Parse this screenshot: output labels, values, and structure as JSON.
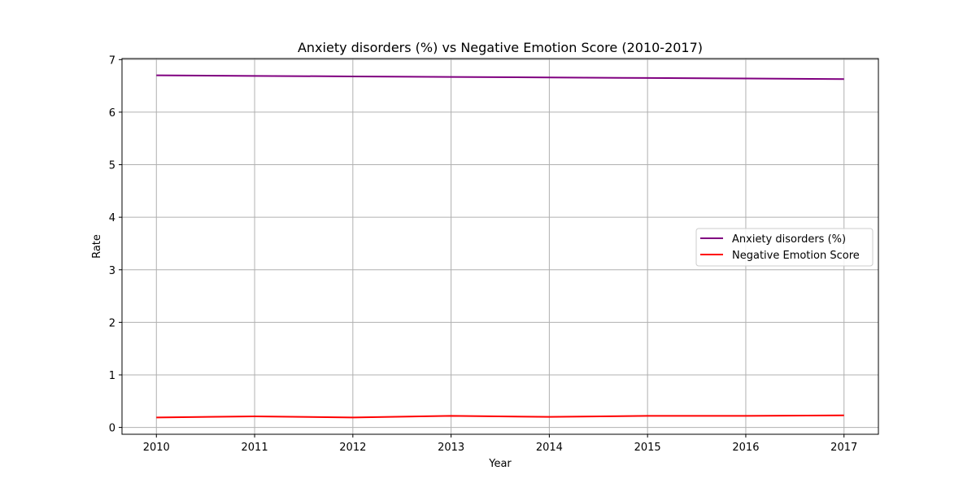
{
  "chart_data": {
    "type": "line",
    "title": "Anxiety disorders (%) vs Negative Emotion Score (2010-2017)",
    "xlabel": "Year",
    "ylabel": "Rate",
    "x": [
      2010,
      2011,
      2012,
      2013,
      2014,
      2015,
      2016,
      2017
    ],
    "x_tick_labels": [
      "2010",
      "2011",
      "2012",
      "2013",
      "2014",
      "2015",
      "2016",
      "2017"
    ],
    "y_tick_labels": [
      "0",
      "1",
      "2",
      "3",
      "4",
      "5",
      "6",
      "7"
    ],
    "xlim": [
      2009.65,
      2017.35
    ],
    "ylim": [
      -0.13,
      7.02
    ],
    "grid": true,
    "legend_position": "center-right",
    "series": [
      {
        "name": "Anxiety disorders (%)",
        "color": "#800080",
        "values": [
          6.7,
          6.69,
          6.68,
          6.67,
          6.66,
          6.65,
          6.64,
          6.63
        ]
      },
      {
        "name": "Negative Emotion Score",
        "color": "#ff0000",
        "values": [
          0.19,
          0.21,
          0.19,
          0.22,
          0.2,
          0.22,
          0.22,
          0.23
        ]
      }
    ]
  }
}
